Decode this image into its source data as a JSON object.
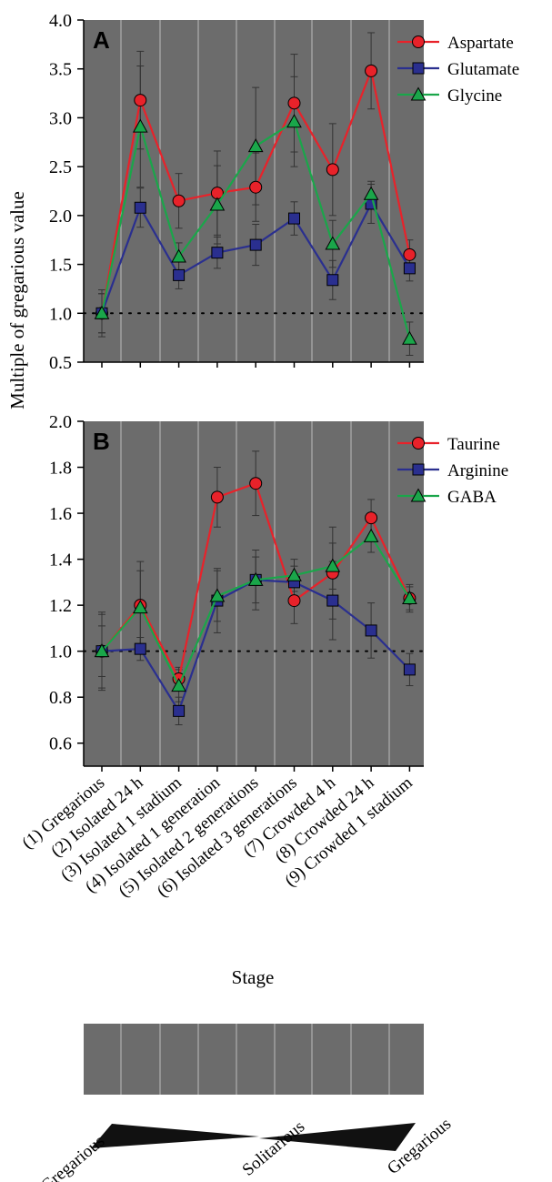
{
  "chart_data": [
    {
      "type": "line",
      "panel_label": "A",
      "categories": [
        "(1) Gregarious",
        "(2) Isolated 24 h",
        "(3) Isolated 1 stadium",
        "(4) Isolated 1 generation",
        "(5) Isolated 2 generations",
        "(6) Isolated 3 generations",
        "(7) Crowded 4 h",
        "(8) Crowded 24 h",
        "(9) Crowded 1 stadium"
      ],
      "ylim": [
        0.5,
        4.0
      ],
      "yticks": [
        "0.5",
        "1.0",
        "1.5",
        "2.0",
        "2.5",
        "3.0",
        "3.5",
        "4.0"
      ],
      "reference_line": 1.0,
      "legend_position": "top-right",
      "series": [
        {
          "name": "Aspartate",
          "color": "#e8222a",
          "marker": "circle",
          "values": [
            1.0,
            3.18,
            2.15,
            2.23,
            2.29,
            3.15,
            2.47,
            3.48,
            1.6
          ],
          "errors": [
            0.2,
            0.5,
            0.28,
            0.43,
            0.35,
            0.5,
            0.47,
            0.39,
            0.15
          ]
        },
        {
          "name": "Glutamate",
          "color": "#2a2f8f",
          "marker": "square",
          "values": [
            1.0,
            2.08,
            1.39,
            1.62,
            1.7,
            1.97,
            1.34,
            2.12,
            1.46
          ],
          "errors": [
            0.2,
            0.2,
            0.14,
            0.16,
            0.21,
            0.17,
            0.2,
            0.2,
            0.13
          ]
        },
        {
          "name": "Glycine",
          "color": "#1aa64a",
          "marker": "triangle",
          "values": [
            1.0,
            2.91,
            1.58,
            2.11,
            2.71,
            2.96,
            1.71,
            2.22,
            0.74
          ],
          "errors": [
            0.24,
            0.62,
            0.14,
            0.4,
            0.6,
            0.46,
            0.24,
            0.13,
            0.17
          ]
        }
      ]
    },
    {
      "type": "line",
      "panel_label": "B",
      "categories": [
        "(1) Gregarious",
        "(2) Isolated 24 h",
        "(3) Isolated 1 stadium",
        "(4) Isolated 1 generation",
        "(5) Isolated 2 generations",
        "(6) Isolated 3 generations",
        "(7) Crowded 4 h",
        "(8) Crowded 24 h",
        "(9) Crowded 1 stadium"
      ],
      "ylim": [
        0.5,
        2.0
      ],
      "yticks": [
        "0.6",
        "0.8",
        "1.0",
        "1.2",
        "1.4",
        "1.6",
        "1.8",
        "2.0"
      ],
      "reference_line": 1.0,
      "legend_position": "top-right",
      "series": [
        {
          "name": "Taurine",
          "color": "#e8222a",
          "marker": "circle",
          "values": [
            1.0,
            1.2,
            0.88,
            1.67,
            1.73,
            1.22,
            1.34,
            1.58,
            1.23
          ],
          "errors": [
            0.17,
            0.19,
            0.05,
            0.13,
            0.14,
            0.1,
            0.2,
            0.08,
            0.06
          ]
        },
        {
          "name": "Arginine",
          "color": "#2a2f8f",
          "marker": "square",
          "values": [
            1.0,
            1.01,
            0.74,
            1.22,
            1.31,
            1.3,
            1.22,
            1.09,
            0.92
          ],
          "errors": [
            0.16,
            0.05,
            0.06,
            0.14,
            0.13,
            0.07,
            0.17,
            0.12,
            0.07
          ]
        },
        {
          "name": "GABA",
          "color": "#1aa64a",
          "marker": "triangle",
          "values": [
            1.0,
            1.19,
            0.85,
            1.24,
            1.31,
            1.33,
            1.37,
            1.5,
            1.23
          ],
          "errors": [
            0.11,
            0.16,
            0.07,
            0.11,
            0.1,
            0.07,
            0.1,
            0.07,
            0.05
          ]
        }
      ]
    }
  ],
  "ylabel": "Multiple of  gregarious value",
  "xlabel": "Stage",
  "scale_bar": {
    "labels": [
      "Gregarious",
      "Solitarious",
      "Gregarious"
    ]
  }
}
